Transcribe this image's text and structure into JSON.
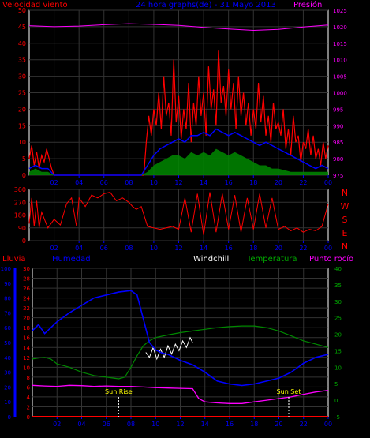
{
  "header": {
    "wind_label": "Velocidad viento",
    "title": "24 hora graphs(de) - 31 Mayo 2013",
    "pressure_label": "Presión"
  },
  "lower_header": {
    "rain_label": "Lluvia",
    "humidity_label": "Humedad",
    "windchill_label": "Windchill",
    "temperature_label": "Temperatura",
    "dewpoint_label": "Punto rocío"
  },
  "annotations": {
    "sunrise": "Sun Rise",
    "sunset": "Sun Set"
  },
  "compass": [
    "N",
    "W",
    "S",
    "E",
    "N"
  ],
  "colors": {
    "wind_speed": "#ff0000",
    "wind_avg": "#0000ff",
    "wind_gust_base": "#008800",
    "pressure": "#ff00ff",
    "wind_dir": "#ff0000",
    "humidity": "#0000ff",
    "temperature": "#008800",
    "windchill": "#ffffff",
    "dewpoint": "#ff00ff",
    "rain": "#ff0000",
    "axis_red": "#ff0000",
    "axis_blue": "#0000ff",
    "axis_green": "#00aa00",
    "axis_magenta": "#ff00ff",
    "title_blue": "#0000ff",
    "compass": "#ff0000"
  },
  "x_ticks": [
    "02",
    "04",
    "06",
    "08",
    "10",
    "12",
    "14",
    "16",
    "18",
    "20",
    "22",
    "00"
  ],
  "x_ticks_bottom": [
    "02",
    "04",
    "06",
    "08",
    "10",
    "12",
    "14",
    "16",
    "18",
    "20",
    "22",
    "00"
  ],
  "chart_data": [
    {
      "type": "line",
      "name": "wind_pressure",
      "xlim": [
        0,
        24
      ],
      "ylim_left": [
        0,
        50
      ],
      "ylim_right": [
        975,
        1025
      ],
      "left_ticks": [
        0,
        5,
        10,
        15,
        20,
        25,
        30,
        35,
        40,
        45,
        50
      ],
      "right_ticks": [
        975,
        980,
        985,
        990,
        995,
        1000,
        1005,
        1010,
        1015,
        1020,
        1025
      ],
      "series": [
        {
          "name": "Velocidad viento",
          "x": [
            0.0,
            0.2,
            0.4,
            0.6,
            0.8,
            1.0,
            1.2,
            1.4,
            1.6,
            1.8,
            2.0,
            2.2,
            2.5,
            3.0,
            3.5,
            4.0,
            4.5,
            5.0,
            5.5,
            6.0,
            6.5,
            7.0,
            7.5,
            8.0,
            8.5,
            9.0,
            9.2,
            9.4,
            9.6,
            9.8,
            10.0,
            10.2,
            10.4,
            10.6,
            10.8,
            11.0,
            11.2,
            11.4,
            11.6,
            11.8,
            12.0,
            12.2,
            12.4,
            12.6,
            12.8,
            13.0,
            13.2,
            13.4,
            13.6,
            13.8,
            14.0,
            14.2,
            14.4,
            14.6,
            14.8,
            15.0,
            15.2,
            15.4,
            15.6,
            15.8,
            16.0,
            16.2,
            16.4,
            16.6,
            16.8,
            17.0,
            17.2,
            17.4,
            17.6,
            17.8,
            18.0,
            18.2,
            18.4,
            18.6,
            18.8,
            19.0,
            19.2,
            19.4,
            19.6,
            19.8,
            20.0,
            20.2,
            20.4,
            20.6,
            20.8,
            21.0,
            21.2,
            21.4,
            21.6,
            21.8,
            22.0,
            22.2,
            22.4,
            22.6,
            22.8,
            23.0,
            23.2,
            23.4,
            23.6,
            23.8,
            24.0
          ],
          "values": [
            5,
            9,
            3,
            7,
            2,
            6,
            4,
            8,
            5,
            2,
            0,
            0,
            0,
            0,
            0,
            0,
            0,
            0,
            0,
            0,
            0,
            0,
            0,
            0,
            0,
            0,
            0,
            10,
            18,
            12,
            20,
            15,
            25,
            14,
            30,
            18,
            22,
            12,
            35,
            16,
            24,
            11,
            20,
            14,
            28,
            10,
            22,
            15,
            30,
            18,
            25,
            12,
            33,
            20,
            26,
            15,
            38,
            22,
            27,
            18,
            32,
            20,
            28,
            14,
            30,
            18,
            25,
            15,
            22,
            12,
            20,
            14,
            28,
            16,
            24,
            12,
            18,
            10,
            22,
            14,
            16,
            12,
            20,
            8,
            14,
            6,
            18,
            10,
            12,
            4,
            10,
            8,
            14,
            6,
            12,
            5,
            8,
            3,
            10,
            5,
            9
          ]
        },
        {
          "name": "Viento medio",
          "x": [
            0.0,
            0.5,
            1.0,
            1.5,
            2.0,
            9.0,
            9.5,
            10.0,
            10.5,
            11.0,
            11.5,
            12.0,
            12.5,
            13.0,
            13.5,
            14.0,
            14.5,
            15.0,
            15.5,
            16.0,
            16.5,
            17.0,
            17.5,
            18.0,
            18.5,
            19.0,
            19.5,
            20.0,
            20.5,
            21.0,
            21.5,
            22.0,
            22.5,
            23.0,
            23.5,
            24.0
          ],
          "values": [
            2,
            3,
            2,
            2,
            0,
            0,
            3,
            6,
            8,
            9,
            10,
            11,
            10,
            12,
            12,
            13,
            12,
            14,
            13,
            12,
            13,
            12,
            11,
            10,
            9,
            10,
            9,
            8,
            7,
            6,
            5,
            4,
            3,
            2,
            3,
            2
          ]
        },
        {
          "name": "Viento base",
          "x": [
            0.0,
            0.5,
            1.0,
            1.5,
            2.0,
            9.0,
            9.5,
            10.0,
            10.5,
            11.0,
            11.5,
            12.0,
            12.5,
            13.0,
            13.5,
            14.0,
            14.5,
            15.0,
            15.5,
            16.0,
            16.5,
            17.0,
            17.5,
            18.0,
            18.5,
            19.0,
            19.5,
            20.0,
            21.0,
            22.0,
            23.0,
            24.0
          ],
          "values": [
            1,
            2,
            1,
            1,
            0,
            0,
            1,
            3,
            4,
            5,
            6,
            6,
            5,
            7,
            6,
            7,
            6,
            8,
            7,
            6,
            7,
            6,
            5,
            4,
            3,
            3,
            2,
            2,
            1,
            1,
            1,
            1
          ]
        },
        {
          "name": "Presión",
          "axis": "right",
          "x": [
            0,
            2,
            4,
            6,
            8,
            10,
            12,
            14,
            16,
            18,
            20,
            22,
            24
          ],
          "values": [
            1020.3,
            1020.0,
            1020.2,
            1020.6,
            1020.9,
            1020.7,
            1020.4,
            1019.8,
            1019.3,
            1018.9,
            1019.2,
            1019.9,
            1020.5
          ]
        }
      ]
    },
    {
      "type": "line",
      "name": "wind_direction",
      "xlim": [
        0,
        24
      ],
      "ylim": [
        0,
        360
      ],
      "y_ticks": [
        0,
        90,
        180,
        270,
        360
      ],
      "series": [
        {
          "name": "Dirección viento",
          "x": [
            0.0,
            0.2,
            0.4,
            0.6,
            0.8,
            1.0,
            1.5,
            2.0,
            2.5,
            3.0,
            3.4,
            3.8,
            4.0,
            4.5,
            5.0,
            5.5,
            6.0,
            6.5,
            7.0,
            7.5,
            8.0,
            8.3,
            8.6,
            9.0,
            9.5,
            10.0,
            10.5,
            11.0,
            11.5,
            12.0,
            12.5,
            13.0,
            13.5,
            14.0,
            14.5,
            15.0,
            15.5,
            16.0,
            16.5,
            17.0,
            17.5,
            18.0,
            18.5,
            19.0,
            19.5,
            20.0,
            20.5,
            21.0,
            21.5,
            22.0,
            22.5,
            23.0,
            23.5,
            24.0
          ],
          "values": [
            120,
            300,
            100,
            280,
            90,
            200,
            90,
            150,
            110,
            260,
            300,
            100,
            300,
            240,
            320,
            300,
            330,
            340,
            280,
            300,
            270,
            240,
            220,
            240,
            100,
            90,
            80,
            90,
            100,
            80,
            300,
            60,
            330,
            40,
            340,
            60,
            330,
            80,
            320,
            60,
            300,
            80,
            330,
            90,
            300,
            80,
            100,
            70,
            90,
            60,
            80,
            70,
            100,
            260
          ]
        }
      ]
    },
    {
      "type": "line",
      "name": "humidity_temperature",
      "xlim": [
        0,
        24
      ],
      "ylim_rain": [
        0,
        30
      ],
      "ylim_humidity": [
        0,
        100
      ],
      "ylim_temperature": [
        -5,
        40
      ],
      "rain_ticks": [
        0,
        2,
        4,
        6,
        8,
        10,
        12,
        14,
        16,
        18,
        20,
        22,
        24,
        26,
        28,
        30
      ],
      "humidity_ticks": [
        0,
        10,
        20,
        30,
        40,
        50,
        60,
        70,
        80,
        90,
        100
      ],
      "temperature_ticks": [
        -5,
        0,
        5,
        10,
        15,
        20,
        25,
        30,
        35,
        40
      ],
      "series": [
        {
          "name": "Humedad",
          "axis": "humidity",
          "x": [
            0,
            0.5,
            1,
            1.5,
            2,
            3,
            4,
            5,
            6,
            7,
            8,
            8.5,
            9,
            9.5,
            10,
            10.5,
            11,
            12,
            13,
            14,
            15,
            16,
            17,
            18,
            19,
            20,
            21,
            22,
            23,
            24
          ],
          "values": [
            58,
            62,
            56,
            60,
            64,
            70,
            75,
            80,
            82,
            84,
            85,
            82,
            66,
            50,
            45,
            43,
            42,
            38,
            35,
            30,
            24,
            22,
            21,
            22,
            24,
            26,
            30,
            36,
            40,
            42
          ]
        },
        {
          "name": "Temperatura",
          "axis": "temperature",
          "x": [
            0,
            0.5,
            1,
            1.5,
            2,
            2.5,
            3,
            4,
            5,
            6,
            7,
            7.5,
            8,
            8.5,
            9,
            9.5,
            10,
            11,
            12,
            13,
            14,
            15,
            16,
            17,
            18,
            19,
            20,
            21,
            22,
            23,
            24
          ],
          "values": [
            12.5,
            12.8,
            13.0,
            12.5,
            11.0,
            10.5,
            10.0,
            8.5,
            7.5,
            7.0,
            6.5,
            7.0,
            10.0,
            13.5,
            16.5,
            18.0,
            19.0,
            19.8,
            20.5,
            21.0,
            21.5,
            22.0,
            22.3,
            22.5,
            22.5,
            22.0,
            21.0,
            19.5,
            18.0,
            17.0,
            16.0
          ]
        },
        {
          "name": "Windchill",
          "axis": "temperature",
          "x": [
            9.2,
            9.5,
            9.8,
            10.1,
            10.4,
            10.7,
            11.0,
            11.3,
            11.6,
            11.9,
            12.2,
            12.5,
            12.8,
            13.0
          ],
          "values": [
            14.5,
            13.0,
            16.0,
            12.5,
            15.5,
            13.0,
            16.5,
            14.0,
            17.0,
            15.0,
            18.0,
            16.0,
            19.0,
            17.5
          ]
        },
        {
          "name": "Punto rocío",
          "axis": "temperature",
          "x": [
            0,
            1,
            2,
            3,
            4,
            5,
            6,
            7,
            8,
            9,
            10,
            11,
            12,
            13,
            13.5,
            14,
            15,
            16,
            17,
            18,
            19,
            20,
            21,
            22,
            23,
            24
          ],
          "values": [
            4.5,
            4.3,
            4.2,
            4.5,
            4.4,
            4.2,
            4.3,
            4.2,
            4.2,
            4.0,
            3.8,
            3.7,
            3.6,
            3.5,
            0.5,
            -0.5,
            -0.8,
            -1.0,
            -1.0,
            -0.5,
            0.0,
            0.5,
            1.0,
            1.8,
            2.5,
            3.0
          ]
        },
        {
          "name": "Lluvia",
          "axis": "rain",
          "x": [
            0,
            24
          ],
          "values": [
            0,
            0
          ]
        }
      ],
      "sunrise_x": 7.0,
      "sunset_x": 20.8
    }
  ]
}
